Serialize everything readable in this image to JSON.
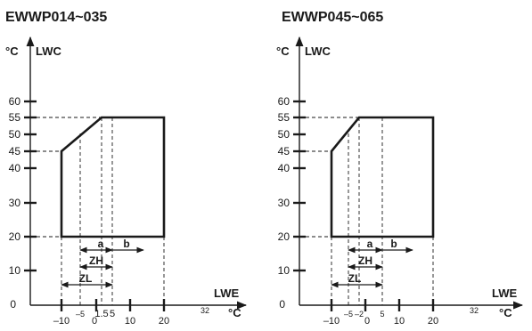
{
  "panels": [
    {
      "title": "EWWP014~035",
      "y_unit": "°C",
      "y_label": "LWC",
      "x_label": "LWE",
      "x_unit": "°C",
      "y_ticks": [
        "60",
        "55",
        "50",
        "45",
        "40",
        "30",
        "20",
        "10",
        "0"
      ],
      "x_ticks": [
        "–10",
        "–5",
        "0",
        "1.5",
        "5",
        "10",
        "20",
        "32"
      ],
      "zones": [
        "a",
        "b",
        "ZH",
        "ZL"
      ]
    },
    {
      "title": "EWWP045~065",
      "y_unit": "°C",
      "y_label": "LWC",
      "x_label": "LWE",
      "x_unit": "°C",
      "y_ticks": [
        "60",
        "55",
        "50",
        "45",
        "40",
        "30",
        "20",
        "10",
        "0"
      ],
      "x_ticks": [
        "–10",
        "–5",
        "–2",
        "0",
        "5",
        "10",
        "20",
        "32"
      ],
      "zones": [
        "a",
        "b",
        "ZH",
        "ZL"
      ]
    }
  ]
}
